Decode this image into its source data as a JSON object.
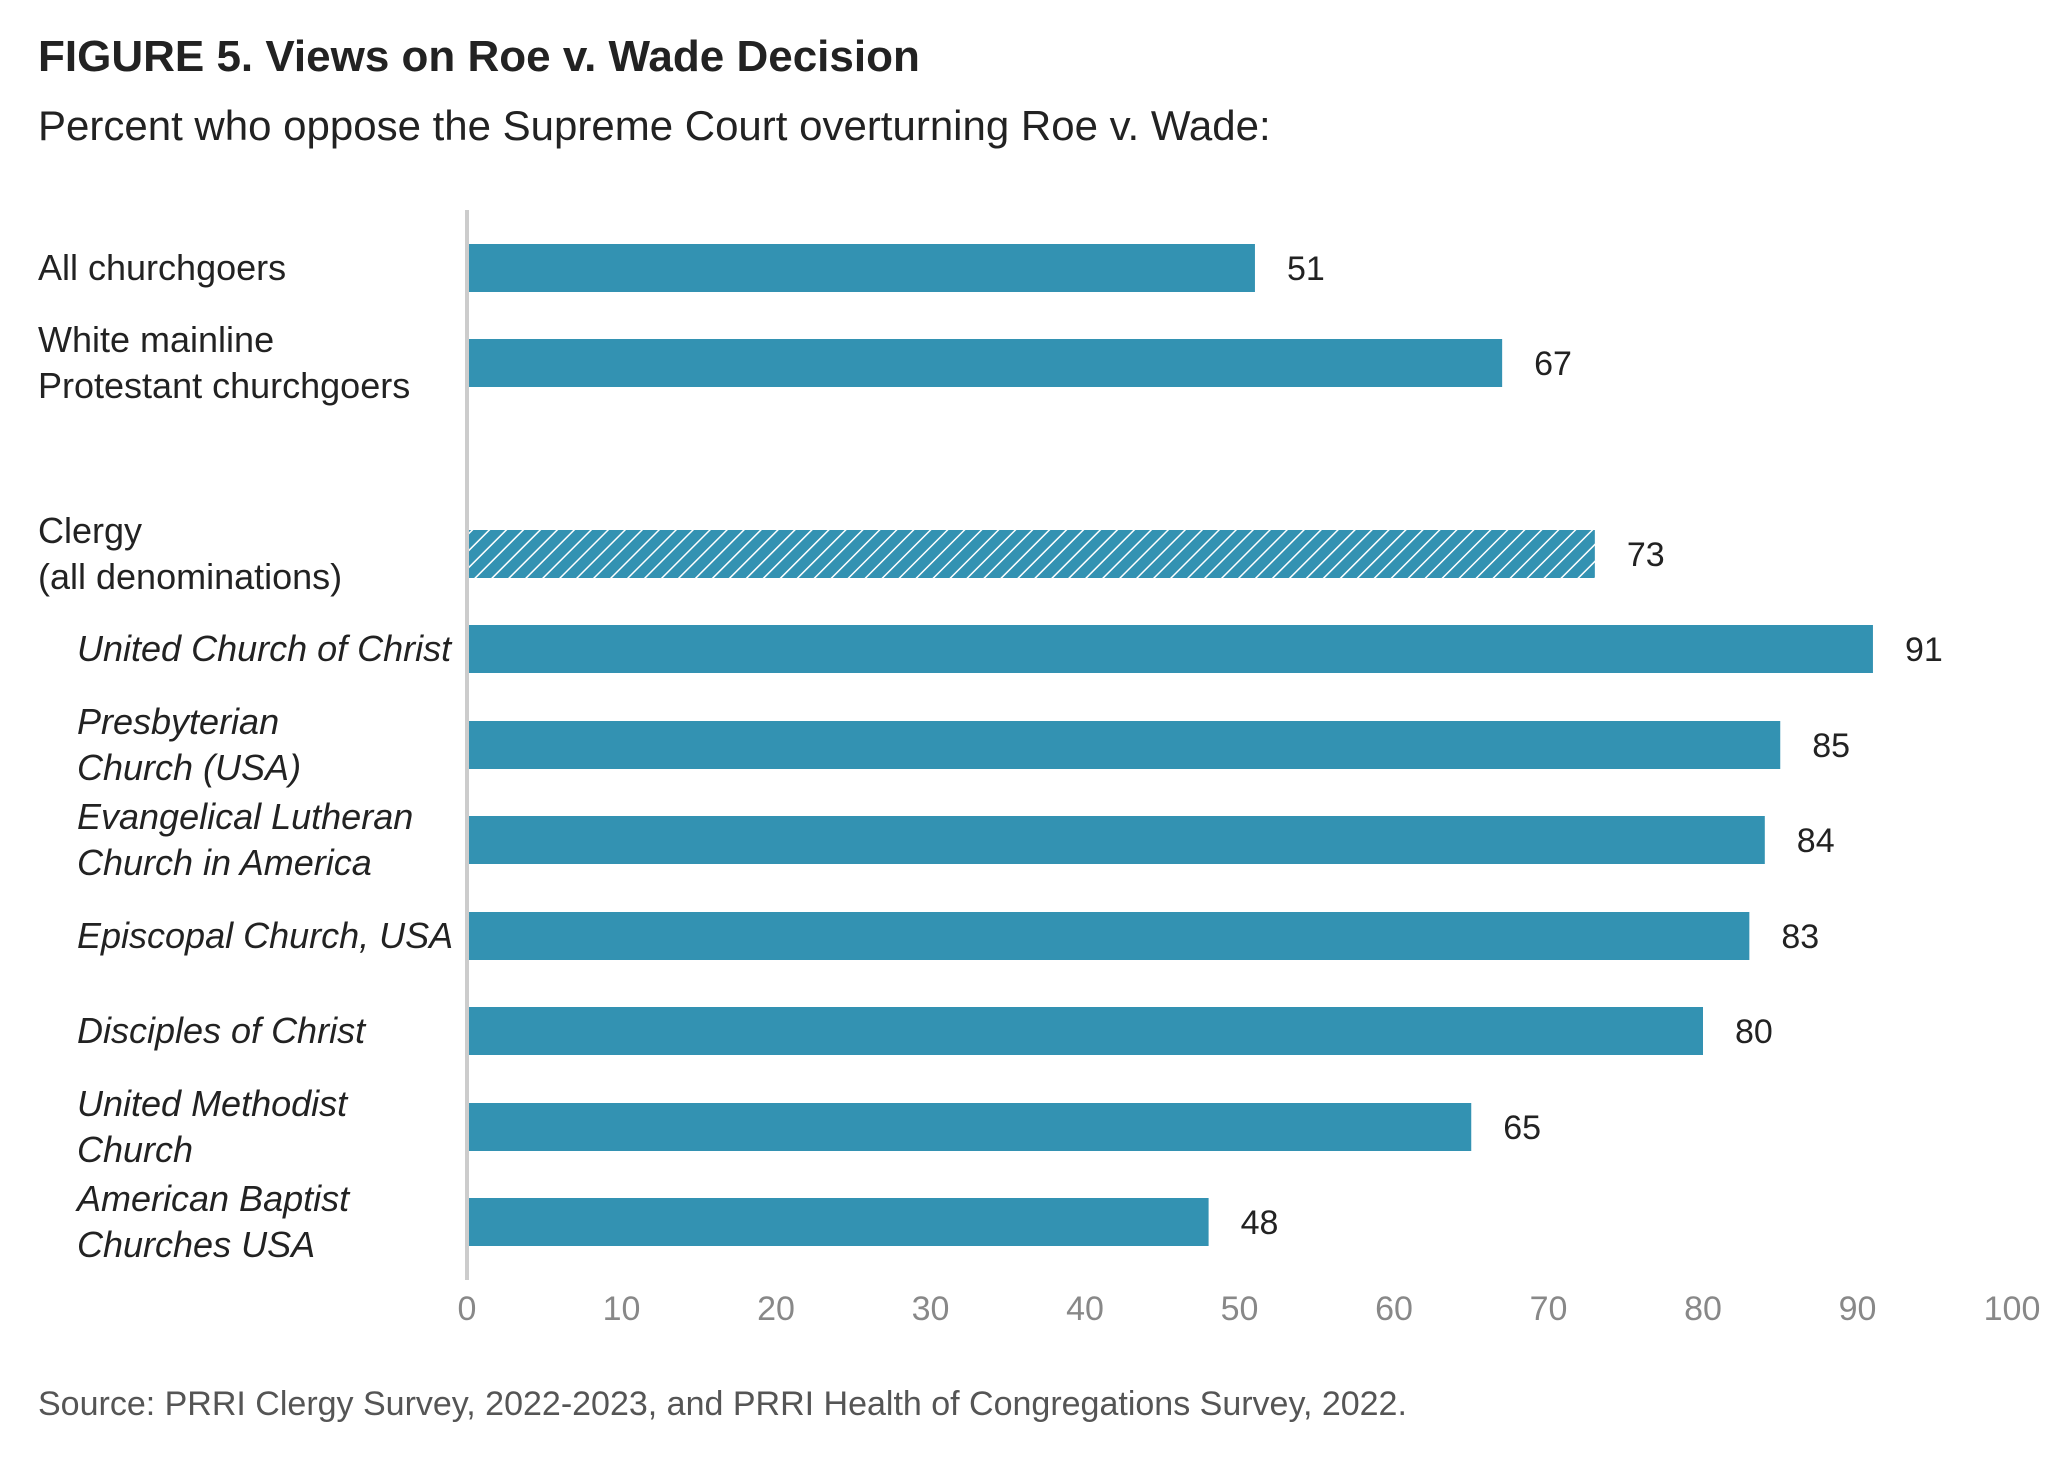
{
  "figure": {
    "title": "FIGURE 5.  Views on Roe v. Wade Decision",
    "subtitle": "Percent who oppose the Supreme Court overturning Roe v. Wade:",
    "source": "Source: PRRI Clergy Survey, 2022-2023, and PRRI Health of Congregations Survey, 2022."
  },
  "colors": {
    "bar": "#3392b2",
    "axis_line": "#cccccc",
    "tick_text": "#888888",
    "label_text": "#222222"
  },
  "chart_data": {
    "type": "bar",
    "orientation": "horizontal",
    "title": "FIGURE 5.  Views on Roe v. Wade Decision",
    "subtitle": "Percent who oppose the Supreme Court overturning Roe v. Wade:",
    "xlabel": "",
    "ylabel": "",
    "xlim": [
      0,
      100
    ],
    "xticks": [
      "0",
      "10",
      "20",
      "30",
      "40",
      "50",
      "60",
      "70",
      "80",
      "90",
      "100"
    ],
    "grid": false,
    "bars": [
      {
        "label_lines": [
          "All churchgoers"
        ],
        "value": 51,
        "value_label": "51",
        "italic": false,
        "indent": false,
        "hatched": false
      },
      {
        "label_lines": [
          "White mainline",
          "Protestant churchgoers"
        ],
        "value": 67,
        "value_label": "67",
        "italic": false,
        "indent": false,
        "hatched": false
      },
      {
        "label_lines": [
          "Clergy",
          "(all denominations)"
        ],
        "value": 73,
        "value_label": "73",
        "italic": false,
        "indent": false,
        "hatched": true
      },
      {
        "label_lines": [
          "United Church of Christ"
        ],
        "value": 91,
        "value_label": "91",
        "italic": true,
        "indent": true,
        "hatched": false
      },
      {
        "label_lines": [
          "Presbyterian",
          "Church (USA)"
        ],
        "value": 85,
        "value_label": "85",
        "italic": true,
        "indent": true,
        "hatched": false
      },
      {
        "label_lines": [
          "Evangelical Lutheran",
          "Church in America"
        ],
        "value": 84,
        "value_label": "84",
        "italic": true,
        "indent": true,
        "hatched": false
      },
      {
        "label_lines": [
          "Episcopal Church, USA"
        ],
        "value": 83,
        "value_label": "83",
        "italic": true,
        "indent": true,
        "hatched": false
      },
      {
        "label_lines": [
          "Disciples of Christ"
        ],
        "value": 80,
        "value_label": "80",
        "italic": true,
        "indent": true,
        "hatched": false
      },
      {
        "label_lines": [
          "United Methodist",
          "Church"
        ],
        "value": 65,
        "value_label": "65",
        "italic": true,
        "indent": true,
        "hatched": false
      },
      {
        "label_lines": [
          "American Baptist",
          "Churches USA"
        ],
        "value": 48,
        "value_label": "48",
        "italic": true,
        "indent": true,
        "hatched": false
      }
    ]
  }
}
